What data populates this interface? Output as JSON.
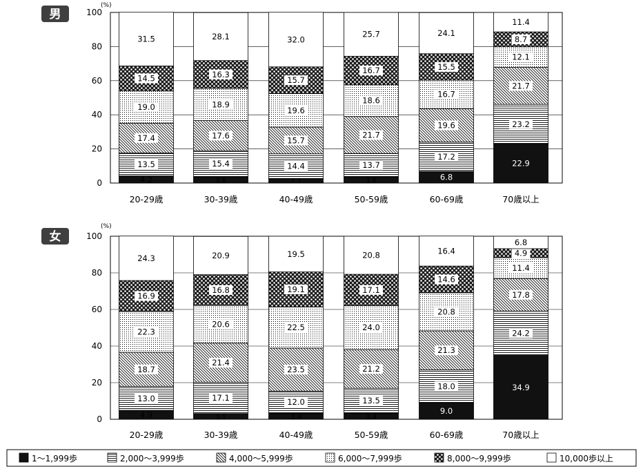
{
  "chart_data": [
    {
      "type": "bar",
      "stacked": true,
      "panel_label": "男",
      "y_unit": "(%)",
      "ylim": [
        0,
        100
      ],
      "yticks": [
        0,
        20,
        40,
        60,
        80,
        100
      ],
      "grid": true,
      "categories": [
        "20-29歳",
        "30-39歳",
        "40-49歳",
        "50-59歳",
        "60-69歳",
        "70歳以上"
      ],
      "series": [
        {
          "name": "1～1,999歩",
          "values": [
            4.2,
            3.6,
            2.7,
            3.6,
            6.8,
            22.9
          ]
        },
        {
          "name": "2,000～3,999歩",
          "values": [
            13.5,
            15.4,
            14.4,
            13.7,
            17.2,
            23.2
          ]
        },
        {
          "name": "4,000～5,999歩",
          "values": [
            17.4,
            17.6,
            15.7,
            21.7,
            19.6,
            21.7
          ]
        },
        {
          "name": "6,000～7,999歩",
          "values": [
            19.0,
            18.9,
            19.6,
            18.6,
            16.7,
            12.1
          ]
        },
        {
          "name": "8,000～9,999歩",
          "values": [
            14.5,
            16.3,
            15.7,
            16.7,
            15.5,
            8.7
          ]
        },
        {
          "name": "10,000歩以上",
          "values": [
            31.5,
            28.1,
            32.0,
            25.7,
            24.1,
            11.4
          ]
        }
      ]
    },
    {
      "type": "bar",
      "stacked": true,
      "panel_label": "女",
      "y_unit": "(%)",
      "ylim": [
        0,
        100
      ],
      "yticks": [
        0,
        20,
        40,
        60,
        80,
        100
      ],
      "grid": true,
      "categories": [
        "20-29歳",
        "30-39歳",
        "40-49歳",
        "50-59歳",
        "60-69歳",
        "70歳以上"
      ],
      "series": [
        {
          "name": "1～1,999歩",
          "values": [
            4.9,
            3.1,
            3.4,
            3.4,
            9.0,
            34.9
          ]
        },
        {
          "name": "2,000～3,999歩",
          "values": [
            13.0,
            17.1,
            12.0,
            13.5,
            18.0,
            24.2
          ]
        },
        {
          "name": "4,000～5,999歩",
          "values": [
            18.7,
            21.4,
            23.5,
            21.2,
            21.3,
            17.8
          ]
        },
        {
          "name": "6,000～7,999歩",
          "values": [
            22.3,
            20.6,
            22.5,
            24.0,
            20.8,
            11.4
          ]
        },
        {
          "name": "8,000～9,999歩",
          "values": [
            16.9,
            16.8,
            19.1,
            17.1,
            14.6,
            4.9
          ]
        },
        {
          "name": "10,000歩以上",
          "values": [
            24.3,
            20.9,
            19.5,
            20.8,
            16.4,
            6.8
          ]
        }
      ]
    }
  ],
  "legend": {
    "placement": "bottom",
    "items": [
      {
        "label": "1～1,999歩",
        "pattern": "solid"
      },
      {
        "label": "2,000～3,999歩",
        "pattern": "horizontal-lines"
      },
      {
        "label": "4,000～5,999歩",
        "pattern": "diagonal-lines"
      },
      {
        "label": "6,000～7,999歩",
        "pattern": "dots"
      },
      {
        "label": "8,000～9,999歩",
        "pattern": "dark-dots"
      },
      {
        "label": "10,000歩以上",
        "pattern": "blank"
      }
    ]
  }
}
